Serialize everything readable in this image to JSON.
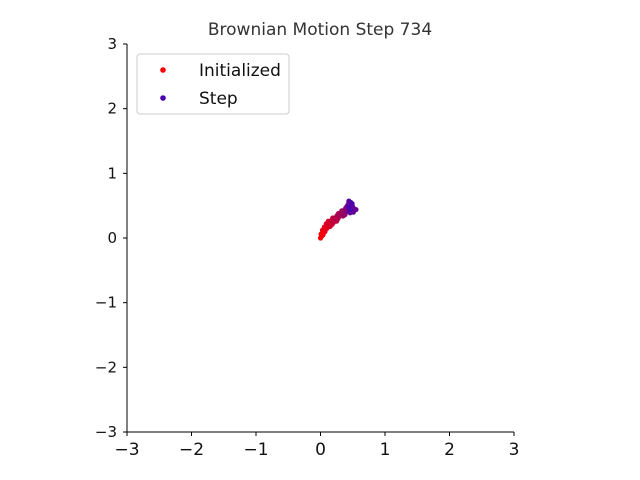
{
  "chart_data": {
    "type": "scatter",
    "title": "Brownian Motion Step 734",
    "xlabel": "",
    "ylabel": "",
    "xlim": [
      -3,
      3
    ],
    "ylim": [
      -3,
      3
    ],
    "xticks": [
      "−3",
      "−2",
      "−1",
      "0",
      "1",
      "2",
      "3"
    ],
    "yticks": [
      "−3",
      "−2",
      "−1",
      "0",
      "1",
      "2",
      "3"
    ],
    "xtick_values": [
      -3,
      -2,
      -1,
      0,
      1,
      2,
      3
    ],
    "ytick_values": [
      -3,
      -2,
      -1,
      0,
      1,
      2,
      3
    ],
    "grid": false,
    "legend": {
      "placement": "top-left",
      "entries": [
        {
          "label": "Initialized",
          "color": "#ff0000"
        },
        {
          "label": "Step",
          "color": "#4b00b0"
        }
      ]
    },
    "start_color": "#ff0000",
    "end_color": "#4b00b0",
    "series": [
      {
        "name": "Step",
        "points": [
          [
            0.0,
            0.0
          ],
          [
            0.02,
            0.03
          ],
          [
            0.01,
            0.06
          ],
          [
            0.04,
            0.05
          ],
          [
            0.05,
            0.09
          ],
          [
            0.03,
            0.12
          ],
          [
            0.07,
            0.1
          ],
          [
            0.08,
            0.14
          ],
          [
            0.06,
            0.17
          ],
          [
            0.1,
            0.15
          ],
          [
            0.11,
            0.19
          ],
          [
            0.09,
            0.22
          ],
          [
            0.13,
            0.2
          ],
          [
            0.15,
            0.18
          ],
          [
            0.14,
            0.23
          ],
          [
            0.12,
            0.26
          ],
          [
            0.16,
            0.25
          ],
          [
            0.18,
            0.21
          ],
          [
            0.17,
            0.27
          ],
          [
            0.2,
            0.24
          ],
          [
            0.21,
            0.28
          ],
          [
            0.19,
            0.31
          ],
          [
            0.23,
            0.29
          ],
          [
            0.25,
            0.26
          ],
          [
            0.24,
            0.32
          ],
          [
            0.27,
            0.3
          ],
          [
            0.26,
            0.35
          ],
          [
            0.29,
            0.33
          ],
          [
            0.31,
            0.36
          ],
          [
            0.28,
            0.38
          ],
          [
            0.32,
            0.39
          ],
          [
            0.34,
            0.37
          ],
          [
            0.33,
            0.42
          ],
          [
            0.36,
            0.4
          ],
          [
            0.35,
            0.34
          ],
          [
            0.38,
            0.36
          ],
          [
            0.37,
            0.43
          ],
          [
            0.4,
            0.41
          ],
          [
            0.39,
            0.46
          ],
          [
            0.42,
            0.44
          ],
          [
            0.41,
            0.49
          ],
          [
            0.44,
            0.47
          ],
          [
            0.43,
            0.52
          ],
          [
            0.46,
            0.5
          ],
          [
            0.45,
            0.54
          ],
          [
            0.48,
            0.51
          ],
          [
            0.47,
            0.46
          ],
          [
            0.5,
            0.48
          ],
          [
            0.49,
            0.43
          ],
          [
            0.52,
            0.45
          ],
          [
            0.55,
            0.44
          ],
          [
            0.51,
            0.4
          ],
          [
            0.48,
            0.42
          ],
          [
            0.46,
            0.39
          ],
          [
            0.44,
            0.41
          ],
          [
            0.47,
            0.55
          ],
          [
            0.44,
            0.57
          ],
          [
            0.49,
            0.53
          ],
          [
            0.46,
            0.45
          ],
          [
            0.43,
            0.48
          ]
        ]
      }
    ]
  }
}
